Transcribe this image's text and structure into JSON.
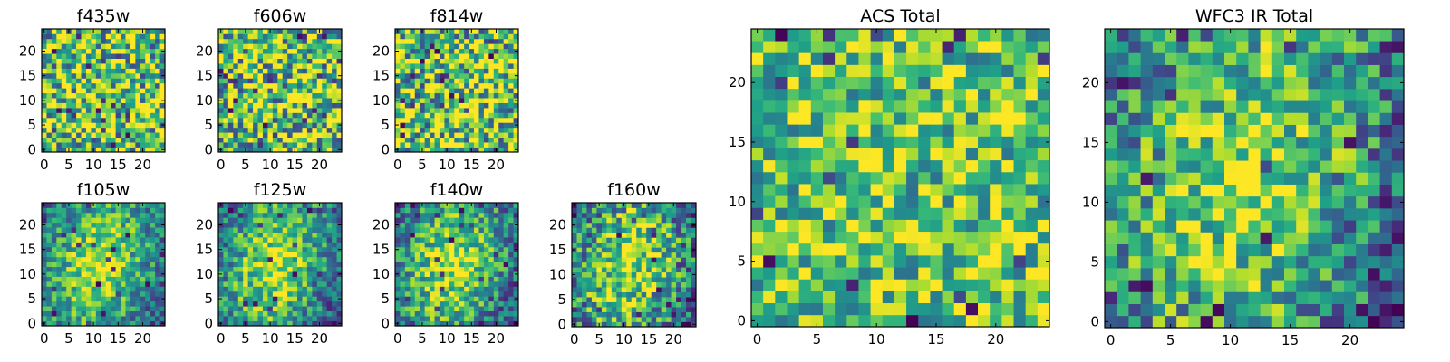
{
  "chart_data": [
    {
      "type": "heatmap",
      "title": "f435w",
      "grid_size": 25,
      "colormap": "viridis",
      "xticks": [
        0,
        5,
        10,
        15,
        20
      ],
      "yticks": [
        0,
        5,
        10,
        15,
        20
      ],
      "pattern": "noise",
      "seed": 11,
      "contrast": 1.0
    },
    {
      "type": "heatmap",
      "title": "f606w",
      "grid_size": 25,
      "colormap": "viridis",
      "xticks": [
        0,
        5,
        10,
        15,
        20
      ],
      "yticks": [
        0,
        5,
        10,
        15,
        20
      ],
      "pattern": "noise",
      "seed": 23,
      "contrast": 1.0
    },
    {
      "type": "heatmap",
      "title": "f814w",
      "grid_size": 25,
      "colormap": "viridis",
      "xticks": [
        0,
        5,
        10,
        15,
        20
      ],
      "yticks": [
        0,
        5,
        10,
        15,
        20
      ],
      "pattern": "noise",
      "seed": 37,
      "contrast": 1.0
    },
    {
      "type": "heatmap",
      "title": "f105w",
      "grid_size": 25,
      "colormap": "viridis",
      "xticks": [
        0,
        5,
        10,
        15,
        20
      ],
      "yticks": [
        0,
        5,
        10,
        15,
        20
      ],
      "pattern": "blob",
      "seed": 41,
      "contrast": 0.55
    },
    {
      "type": "heatmap",
      "title": "f125w",
      "grid_size": 25,
      "colormap": "viridis",
      "xticks": [
        0,
        5,
        10,
        15,
        20
      ],
      "yticks": [
        0,
        5,
        10,
        15,
        20
      ],
      "pattern": "blob",
      "seed": 53,
      "contrast": 0.6
    },
    {
      "type": "heatmap",
      "title": "f140w",
      "grid_size": 25,
      "colormap": "viridis",
      "xticks": [
        0,
        5,
        10,
        15,
        20
      ],
      "yticks": [
        0,
        5,
        10,
        15,
        20
      ],
      "pattern": "blob",
      "seed": 67,
      "contrast": 0.6
    },
    {
      "type": "heatmap",
      "title": "f160w",
      "grid_size": 25,
      "colormap": "viridis",
      "xticks": [
        0,
        5,
        10,
        15,
        20
      ],
      "yticks": [
        0,
        5,
        10,
        15,
        20
      ],
      "pattern": "blob",
      "seed": 79,
      "contrast": 0.75
    },
    {
      "type": "heatmap",
      "title": "ACS Total",
      "grid_size": 25,
      "colormap": "viridis",
      "xticks": [
        0,
        5,
        10,
        15,
        20
      ],
      "yticks": [
        0,
        5,
        10,
        15,
        20
      ],
      "pattern": "noise",
      "seed": 97,
      "contrast": 0.7
    },
    {
      "type": "heatmap",
      "title": "WFC3 IR Total",
      "grid_size": 25,
      "colormap": "viridis",
      "xticks": [
        0,
        5,
        10,
        15,
        20
      ],
      "yticks": [
        0,
        5,
        10,
        15,
        20
      ],
      "pattern": "blob",
      "seed": 113,
      "contrast": 0.7
    }
  ]
}
